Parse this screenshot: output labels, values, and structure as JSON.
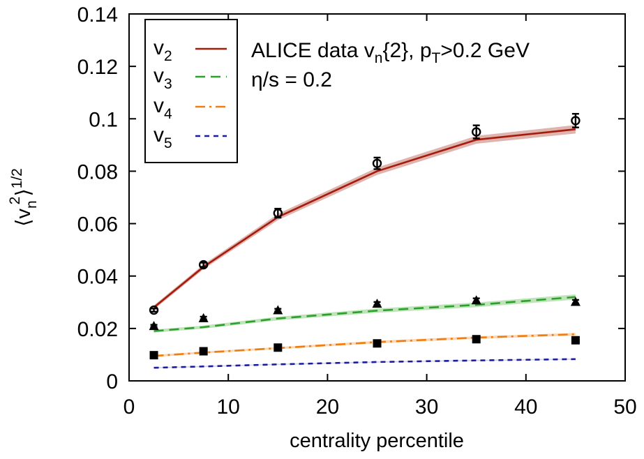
{
  "chart_data": {
    "type": "line",
    "title": "",
    "xlabel": "centrality percentile",
    "ylabel": "⟨v_n^2⟩^1/2",
    "ylabel_parts": {
      "open": "⟨v",
      "sub": "n",
      "sup": "2",
      "close": "⟩",
      "power": "1/2"
    },
    "xlim": [
      0,
      50
    ],
    "ylim": [
      0,
      0.14
    ],
    "xticks": [
      0,
      10,
      20,
      30,
      40,
      50
    ],
    "xtick_labels": [
      "0",
      "10",
      "20",
      "30",
      "40",
      "50"
    ],
    "yticks": [
      0,
      0.02,
      0.04,
      0.06,
      0.08,
      0.1,
      0.12,
      0.14
    ],
    "ytick_labels": [
      "0",
      "0.02",
      "0.04",
      "0.06",
      "0.08",
      "0.1",
      "0.12",
      "0.14"
    ],
    "annotations": {
      "line1": {
        "pre": "ALICE data v",
        "sub1": "n",
        "mid": "{2}, p",
        "sub2": "T",
        "post": ">0.2 GeV"
      },
      "line2": "η/s = 0.2"
    },
    "legend_position": "top-left",
    "series": [
      {
        "name": "v2",
        "label": "v",
        "label_sub": "2",
        "color": "#a31c0c",
        "band_color": "#d9a6a0",
        "dash": "solid",
        "x": [
          2.5,
          7.5,
          15,
          25,
          35,
          45
        ],
        "y": [
          0.028,
          0.0435,
          0.0625,
          0.08,
          0.092,
          0.096
        ],
        "band": [
          0.0008,
          0.0009,
          0.0012,
          0.0014,
          0.0015,
          0.0016
        ]
      },
      {
        "name": "v3",
        "label": "v",
        "label_sub": "3",
        "color": "#2ba02b",
        "band_color": "#b5dfae",
        "dash": "14,8",
        "x": [
          2.5,
          7.5,
          15,
          25,
          35,
          45
        ],
        "y": [
          0.019,
          0.0205,
          0.0238,
          0.0268,
          0.029,
          0.032
        ],
        "band": [
          0.0006,
          0.0006,
          0.0007,
          0.0008,
          0.0009,
          0.001
        ]
      },
      {
        "name": "v4",
        "label": "v",
        "label_sub": "4",
        "color": "#f07d10",
        "band_color": "#fbd0a6",
        "dash": "14,6,3,6",
        "x": [
          2.5,
          7.5,
          15,
          25,
          35,
          45
        ],
        "y": [
          0.0095,
          0.0108,
          0.0125,
          0.0148,
          0.0165,
          0.0178
        ],
        "band": [
          0.0004,
          0.0004,
          0.0004,
          0.0005,
          0.0005,
          0.0005
        ]
      },
      {
        "name": "v5",
        "label": "v",
        "label_sub": "5",
        "color": "#1c1ca0",
        "band_color": "#c8c8ee",
        "dash": "7,6",
        "x": [
          2.5,
          7.5,
          15,
          25,
          35,
          45
        ],
        "y": [
          0.005,
          0.0055,
          0.0063,
          0.0072,
          0.0078,
          0.0083
        ],
        "band": [
          0.0002,
          0.0002,
          0.0002,
          0.0002,
          0.0002,
          0.0002
        ]
      }
    ],
    "data_points": [
      {
        "name": "ALICE v2{2}",
        "marker": "open-circle",
        "x": [
          2.5,
          7.5,
          15,
          25,
          35,
          45
        ],
        "y": [
          0.027,
          0.0443,
          0.064,
          0.083,
          0.095,
          0.0993
        ],
        "err": [
          0.0006,
          0.0008,
          0.0017,
          0.0022,
          0.0025,
          0.0026
        ]
      },
      {
        "name": "ALICE v3{2}",
        "marker": "filled-triangle",
        "x": [
          2.5,
          7.5,
          15,
          25,
          35,
          45
        ],
        "y": [
          0.021,
          0.024,
          0.027,
          0.0295,
          0.0308,
          0.0302
        ],
        "err": [
          0.0004,
          0.0005,
          0.0005,
          0.0006,
          0.0007,
          0.0007
        ]
      },
      {
        "name": "ALICE v4{2}",
        "marker": "filled-square",
        "x": [
          2.5,
          7.5,
          15,
          25,
          35,
          45
        ],
        "y": [
          0.0098,
          0.0113,
          0.0127,
          0.0143,
          0.0159,
          0.0155
        ],
        "err": [
          0.0003,
          0.0003,
          0.0003,
          0.0004,
          0.0004,
          0.0004
        ]
      }
    ]
  }
}
